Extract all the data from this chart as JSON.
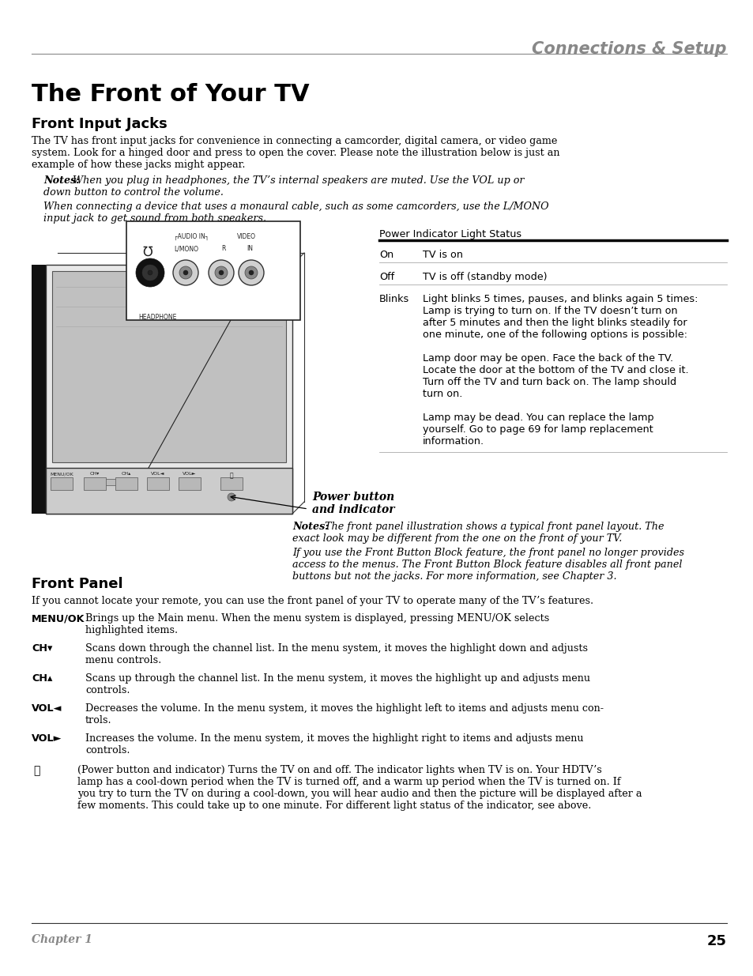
{
  "header_title": "Connections & Setup",
  "page_title": "The Front of Your TV",
  "section1_title": "Front Input Jacks",
  "section1_body_lines": [
    "The TV has front input jacks for convenience in connecting a camcorder, digital camera, or video game",
    "system. Look for a hinged door and press to open the cover. Please note the illustration below is just an",
    "example of how these jacks might appear."
  ],
  "note1_bold": "Notes:",
  "note1_rest": " When you plug in headphones, the TV’s internal speakers are muted. Use the VOL up or",
  "note1_line2": "down button to control the volume.",
  "note2_line1": "When connecting a device that uses a monaural cable, such as some camcorders, use the L/MONO",
  "note2_line2": "input jack to get sound from both speakers.",
  "power_table_header": "Power Indicator Light Status",
  "row_on_label": "On",
  "row_on_text": "TV is on",
  "row_off_label": "Off",
  "row_off_text": "TV is off (standby mode)",
  "row_blinks_label": "Blinks",
  "blinks_lines": [
    "Light blinks 5 times, pauses, and blinks again 5 times:",
    "Lamp is trying to turn on. If the TV doesn’t turn on",
    "after 5 minutes and then the light blinks steadily for",
    "one minute, one of the following options is possible:",
    "",
    "Lamp door may be open. Face the back of the TV.",
    "Locate the door at the bottom of the TV and close it.",
    "Turn off the TV and turn back on. The lamp should",
    "turn on.",
    "",
    "Lamp may be dead. You can replace the lamp",
    "yourself. Go to page 69 for lamp replacement",
    "information."
  ],
  "pb_label": "Power button",
  "pb_label2": "and indicator",
  "fp_note_bold": "Notes:",
  "fp_note_lines": [
    " The front panel illustration shows a typical front panel layout. The",
    "exact look may be different from the one on the front of your TV.",
    "",
    "If you use the Front Button Block feature, the front panel no longer provides",
    "access to the menus. The Front Button Block feature disables all front panel",
    "buttons but not the jacks. For more information, see Chapter 3."
  ],
  "section2_title": "Front Panel",
  "section2_body": "If you cannot locate your remote, you can use the front panel of your TV to operate many of the TV’s features.",
  "fp_items": [
    {
      "label": "MENU/OK",
      "sep": "    ",
      "lines": [
        "Brings up the Main menu. When the menu system is displayed, pressing MENU/OK selects",
        "highlighted items."
      ]
    },
    {
      "label": "CH▾",
      "sep": "    ",
      "lines": [
        "Scans down through the channel list. In the menu system, it moves the highlight down and adjusts",
        "menu controls."
      ]
    },
    {
      "label": "CH▴",
      "sep": "    ",
      "lines": [
        "Scans up through the channel list. In the menu system, it moves the highlight up and adjusts menu",
        "controls."
      ]
    },
    {
      "label": "VOL◄",
      "sep": "    ",
      "lines": [
        "Decreases the volume. In the menu system, it moves the highlight left to items and adjusts menu con-",
        "trols."
      ]
    },
    {
      "label": "VOL►",
      "sep": "    ",
      "lines": [
        "Increases the volume. In the menu system, it moves the highlight right to items and adjusts menu",
        "controls."
      ]
    }
  ],
  "power_item_lines": [
    "(Power button and indicator) Turns the TV on and off. The indicator lights when TV is on. Your HDTV’s",
    "lamp has a cool-down period when the TV is turned off, and a warm up period when the TV is turned on. If",
    "you try to turn the TV on during a cool-down, you will hear audio and then the picture will be displayed after a",
    "few moments. This could take up to one minute. For different light status of the indicator, see above."
  ],
  "footer_chapter": "Chapter 1",
  "footer_page": "25"
}
